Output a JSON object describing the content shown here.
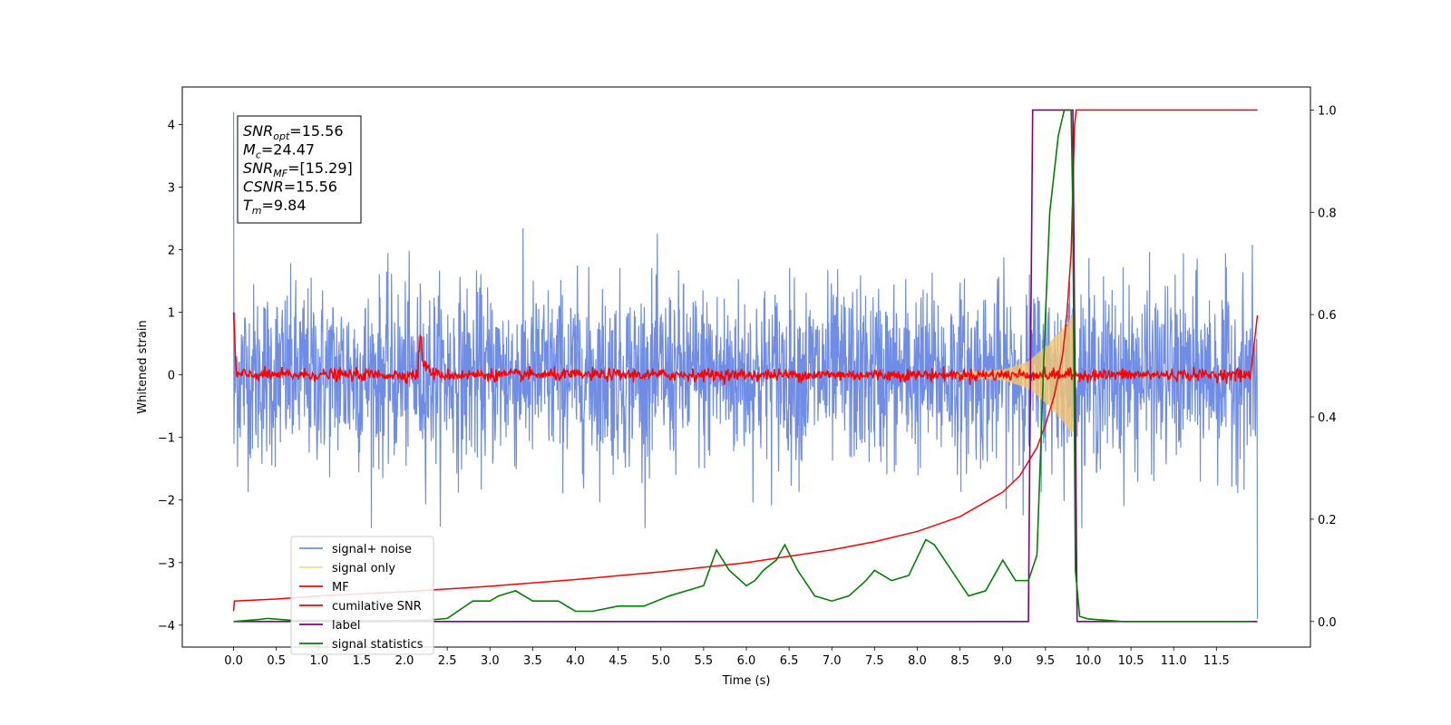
{
  "chart_data": {
    "type": "line",
    "title": "",
    "xlabel": "Time (s)",
    "ylabel": "Whitened strain",
    "xlim": [
      -0.6,
      12.6
    ],
    "ylim": [
      -4.35,
      4.6
    ],
    "y2lim": [
      -0.05,
      1.045
    ],
    "x_ticks": [
      0.0,
      0.5,
      1.0,
      1.5,
      2.0,
      2.5,
      3.0,
      3.5,
      4.0,
      4.5,
      5.0,
      5.5,
      6.0,
      6.5,
      7.0,
      7.5,
      8.0,
      8.5,
      9.0,
      9.5,
      10.0,
      10.5,
      11.0,
      11.5
    ],
    "x_tick_labels": [
      "0.0",
      "0.5",
      "1.0",
      "1.5",
      "2.0",
      "2.5",
      "3.0",
      "3.5",
      "4.0",
      "4.5",
      "5.0",
      "5.5",
      "6.0",
      "6.5",
      "7.0",
      "7.5",
      "8.0",
      "8.5",
      "9.0",
      "9.5",
      "10.0",
      "10.5",
      "11.0",
      "11.5"
    ],
    "y_ticks": [
      -4,
      -3,
      -2,
      -1,
      0,
      1,
      2,
      3,
      4
    ],
    "y_tick_labels": [
      "−4",
      "−3",
      "−2",
      "−1",
      "0",
      "1",
      "2",
      "3",
      "4"
    ],
    "y2_ticks": [
      0.0,
      0.2,
      0.4,
      0.6,
      0.8,
      1.0
    ],
    "y2_tick_labels": [
      "0.0",
      "0.2",
      "0.4",
      "0.6",
      "0.8",
      "1.0"
    ],
    "grid": false,
    "legend_placement": "lower-left",
    "annotation_lines": [
      {
        "var": "SNR",
        "sub": "opt",
        "value": "=15.56"
      },
      {
        "var": "M",
        "sub": "c",
        "value": "=24.47"
      },
      {
        "var": "SNR",
        "sub": "MF",
        "value": "=[15.29]"
      },
      {
        "var": "CSNR",
        "sub": "",
        "value": "=15.56"
      },
      {
        "var": "T",
        "sub": "m",
        "value": "=9.84"
      }
    ],
    "series": [
      {
        "name": "signal+ noise",
        "color": "#6f8de6",
        "axis": "left",
        "kind": "noise",
        "x_range": [
          0.0,
          11.98
        ],
        "typical_amplitude": 1.3,
        "peak_range": [
          -2.45,
          2.35
        ],
        "start_spike": 4.2,
        "end_spike": -3.9
      },
      {
        "name": "signal only",
        "color": "#f5c66e",
        "axis": "left",
        "kind": "chirp",
        "x_range": [
          0.0,
          9.84
        ],
        "amplitude_points": [
          [
            8.5,
            0.03
          ],
          [
            9.0,
            0.08
          ],
          [
            9.3,
            0.22
          ],
          [
            9.5,
            0.45
          ],
          [
            9.7,
            0.75
          ],
          [
            9.84,
            1.0
          ]
        ]
      },
      {
        "name": "MF",
        "color": "#ff0000",
        "axis": "left",
        "kind": "noisy-baseline",
        "x_range": [
          0.0,
          11.98
        ],
        "baseline": 0.0,
        "jitter": 0.08,
        "features": [
          [
            0.0,
            1.0
          ],
          [
            0.03,
            0.1
          ],
          [
            2.18,
            0.38
          ],
          [
            11.98,
            0.95
          ]
        ]
      },
      {
        "name": "cumilative SNR",
        "color": "#ff0000",
        "axis": "right",
        "x": [
          0.0,
          0.01,
          0.5,
          1.0,
          2.0,
          3.0,
          4.0,
          5.0,
          6.0,
          7.0,
          7.5,
          8.0,
          8.5,
          9.0,
          9.2,
          9.4,
          9.5,
          9.6,
          9.7,
          9.75,
          9.8,
          9.82,
          9.84,
          9.86,
          10.0,
          11.0,
          11.98
        ],
        "values": [
          0.02,
          0.04,
          0.044,
          0.05,
          0.058,
          0.069,
          0.082,
          0.097,
          0.115,
          0.14,
          0.156,
          0.176,
          0.205,
          0.253,
          0.285,
          0.34,
          0.385,
          0.44,
          0.52,
          0.6,
          0.72,
          0.85,
          0.97,
          1.0,
          1.0,
          1.0,
          1.0
        ]
      },
      {
        "name": "label",
        "color": "#800080",
        "axis": "right",
        "x": [
          0.0,
          9.3,
          9.35,
          9.82,
          9.87,
          11.98
        ],
        "values": [
          0.0,
          0.0,
          1.0,
          1.0,
          0.0,
          0.0
        ]
      },
      {
        "name": "signal statistics",
        "color": "#008000",
        "axis": "right",
        "x": [
          0.0,
          0.3,
          0.4,
          0.7,
          1.0,
          1.5,
          2.0,
          2.3,
          2.5,
          2.8,
          3.0,
          3.1,
          3.3,
          3.5,
          3.8,
          4.0,
          4.2,
          4.5,
          4.8,
          5.1,
          5.3,
          5.5,
          5.65,
          5.8,
          6.0,
          6.1,
          6.2,
          6.35,
          6.45,
          6.6,
          6.8,
          7.0,
          7.2,
          7.4,
          7.5,
          7.7,
          7.9,
          8.1,
          8.2,
          8.4,
          8.6,
          8.8,
          8.9,
          9.0,
          9.15,
          9.3,
          9.4,
          9.5,
          9.55,
          9.65,
          9.72,
          9.8,
          9.82,
          9.85,
          9.9,
          10.0,
          10.4,
          11.9
        ],
        "values": [
          0.0,
          0.004,
          0.006,
          0.002,
          0.002,
          0.001,
          0.002,
          0.003,
          0.006,
          0.04,
          0.04,
          0.05,
          0.06,
          0.04,
          0.04,
          0.02,
          0.02,
          0.03,
          0.03,
          0.05,
          0.06,
          0.07,
          0.14,
          0.1,
          0.07,
          0.08,
          0.1,
          0.12,
          0.15,
          0.1,
          0.05,
          0.04,
          0.05,
          0.08,
          0.1,
          0.08,
          0.09,
          0.16,
          0.15,
          0.1,
          0.05,
          0.06,
          0.09,
          0.12,
          0.08,
          0.08,
          0.13,
          0.6,
          0.8,
          0.95,
          1.0,
          1.0,
          0.8,
          0.1,
          0.01,
          0.005,
          0.0,
          0.0
        ]
      }
    ]
  }
}
